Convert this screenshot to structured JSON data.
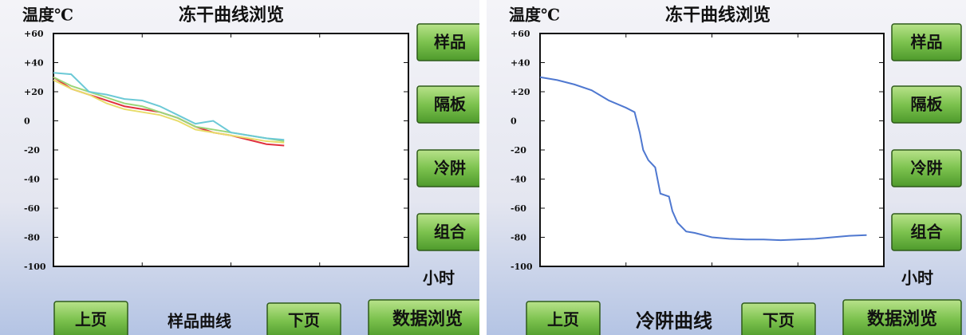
{
  "panels": [
    {
      "y_label": "温度℃",
      "title": "冻干曲线浏览",
      "x_label": "小时",
      "side_buttons": [
        "样品",
        "隔板",
        "冷阱",
        "组合"
      ],
      "prev_button": "上页",
      "curve_name": "样品曲线",
      "next_button": "下页",
      "browse_button": "数据浏览",
      "chart_data": {
        "type": "line",
        "x": [
          0,
          1,
          2,
          3,
          4,
          5,
          6,
          7,
          8,
          9,
          10,
          11,
          12,
          13
        ],
        "xlim": [
          0,
          20
        ],
        "ylim": [
          -100,
          60
        ],
        "yticks": [
          {
            "value": 60,
            "label": "+60"
          },
          {
            "value": 40,
            "label": "+40"
          },
          {
            "value": 20,
            "label": "+20"
          },
          0,
          -20,
          -40,
          -60,
          -80,
          -100
        ],
        "series": [
          {
            "color": "#e0313f",
            "values": [
              30,
              22,
              18,
              14,
              10,
              8,
              6,
              2,
              -4,
              -8,
              -10,
              -13,
              -16,
              -17
            ]
          },
          {
            "color": "#e8dc6a",
            "values": [
              28,
              22,
              18,
              12,
              8,
              6,
              4,
              0,
              -6,
              -8,
              -10,
              -12,
              -14,
              -15
            ]
          },
          {
            "color": "#9bd67a",
            "values": [
              30,
              24,
              20,
              16,
              12,
              10,
              6,
              2,
              -4,
              -6,
              -8,
              -10,
              -12,
              -14
            ]
          },
          {
            "color": "#6cc9d6",
            "values": [
              33,
              32,
              20,
              18,
              15,
              14,
              10,
              4,
              -2,
              0,
              -8,
              -10,
              -12,
              -13
            ]
          }
        ]
      }
    },
    {
      "y_label": "温度℃",
      "title": "冻干曲线浏览",
      "x_label": "小时",
      "side_buttons": [
        "样品",
        "隔板",
        "冷阱",
        "组合"
      ],
      "prev_button": "上页",
      "curve_name": "冷阱曲线",
      "next_button": "下页",
      "browse_button": "数据浏览",
      "chart_data": {
        "type": "line",
        "x": [
          0,
          1,
          2,
          3,
          4,
          5,
          5.5,
          5.8,
          6,
          6.3,
          6.7,
          7,
          7.5,
          7.7,
          8,
          8.5,
          9,
          10,
          11,
          12,
          13,
          14,
          15,
          16,
          17,
          18,
          19
        ],
        "xlim": [
          0,
          20
        ],
        "ylim": [
          -100,
          60
        ],
        "yticks": [
          {
            "value": 60,
            "label": "+60"
          },
          {
            "value": 40,
            "label": "+40"
          },
          {
            "value": 20,
            "label": "+20"
          },
          0,
          -20,
          -40,
          -60,
          -80,
          -100
        ],
        "series": [
          {
            "color": "#4f78d0",
            "values": [
              30,
              28,
              25,
              21,
              14,
              9,
              6,
              -8,
              -20,
              -27,
              -32,
              -50,
              -52,
              -62,
              -70,
              -76,
              -77,
              -80,
              -81,
              -81.5,
              -81.5,
              -82,
              -81.5,
              -81,
              -80,
              -79,
              -78.5
            ]
          }
        ]
      }
    }
  ]
}
